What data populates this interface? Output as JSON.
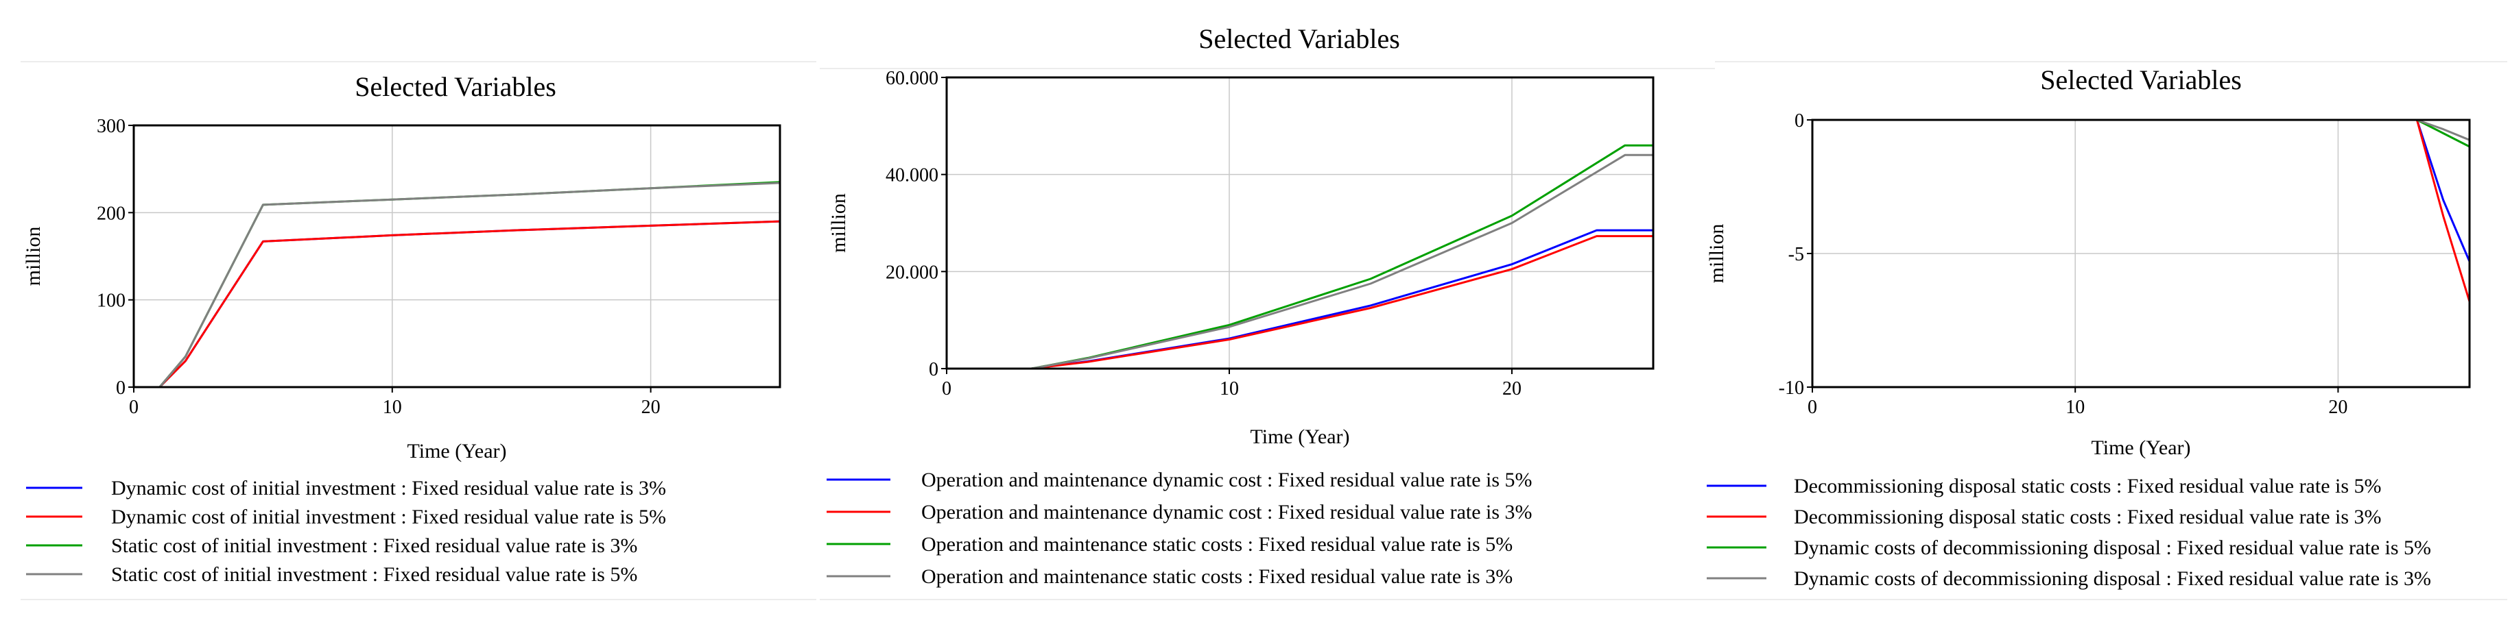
{
  "chart_data": [
    {
      "type": "line",
      "title": "Selected Variables",
      "xlabel": "Time (Year)",
      "ylabel": "million",
      "xlim": [
        0,
        25
      ],
      "ylim": [
        0,
        300
      ],
      "xticks": [
        0,
        10,
        20
      ],
      "yticks": [
        0,
        100,
        200,
        300
      ],
      "ytick_labels": [
        "0",
        "100",
        "200",
        "300"
      ],
      "grid": true,
      "legend_position": "bottom",
      "series": [
        {
          "name": "Dynamic cost of initial investment : Fixed residual value rate is 3%",
          "color": "#0000ff",
          "x": [
            1,
            2,
            5,
            10,
            15,
            20,
            25
          ],
          "y": [
            0,
            30,
            167,
            174,
            180,
            185,
            190
          ]
        },
        {
          "name": "Dynamic cost of initial investment : Fixed residual value rate is 5%",
          "color": "#ff0000",
          "x": [
            1,
            2,
            5,
            10,
            15,
            20,
            25
          ],
          "y": [
            0,
            30,
            167,
            174,
            180,
            185,
            190
          ]
        },
        {
          "name": "Static cost of initial investment : Fixed residual value rate is 3%",
          "color": "#00a000",
          "x": [
            1,
            2,
            5,
            10,
            15,
            20,
            25
          ],
          "y": [
            0,
            35,
            209,
            215,
            221,
            228,
            235
          ]
        },
        {
          "name": "Static cost of initial investment : Fixed residual value rate is 5%",
          "color": "#808080",
          "x": [
            1,
            2,
            5,
            10,
            15,
            20,
            25
          ],
          "y": [
            0,
            35,
            209,
            215,
            221,
            228,
            234
          ]
        }
      ]
    },
    {
      "type": "line",
      "title": "Selected Variables",
      "xlabel": "Time (Year)",
      "ylabel": "million",
      "xlim": [
        0,
        25
      ],
      "ylim": [
        0,
        60
      ],
      "xticks": [
        0,
        10,
        20
      ],
      "yticks": [
        0,
        20,
        40,
        60
      ],
      "ytick_labels": [
        "0",
        "20.000",
        "40.000",
        "60.000"
      ],
      "grid": true,
      "legend_position": "bottom",
      "series": [
        {
          "name": "Operation and maintenance dynamic cost : Fixed residual value rate is 5%",
          "color": "#0000ff",
          "x": [
            3,
            5,
            10,
            15,
            20,
            23,
            25
          ],
          "y": [
            0,
            1.5,
            6.2,
            13,
            21.5,
            28.5,
            28.5
          ]
        },
        {
          "name": "Operation and maintenance dynamic cost : Fixed residual value rate is 3%",
          "color": "#ff0000",
          "x": [
            3,
            5,
            10,
            15,
            20,
            23,
            25
          ],
          "y": [
            0,
            1.4,
            6,
            12.5,
            20.5,
            27.3,
            27.3
          ]
        },
        {
          "name": "Operation and maintenance static costs : Fixed residual value rate is 5%",
          "color": "#00a000",
          "x": [
            3,
            5,
            10,
            15,
            20,
            24,
            25
          ],
          "y": [
            0,
            2.2,
            9,
            18.5,
            31.5,
            46,
            46
          ]
        },
        {
          "name": "Operation and maintenance static costs : Fixed residual value rate is 3%",
          "color": "#808080",
          "x": [
            3,
            5,
            10,
            15,
            20,
            24,
            25
          ],
          "y": [
            0,
            2.1,
            8.6,
            17.5,
            30,
            44,
            44
          ]
        }
      ]
    },
    {
      "type": "line",
      "title": "Selected Variables",
      "xlabel": "Time (Year)",
      "ylabel": "million",
      "xlim": [
        0,
        25
      ],
      "ylim": [
        -10,
        0
      ],
      "xticks": [
        0,
        10,
        20
      ],
      "yticks": [
        -10,
        -5,
        0
      ],
      "ytick_labels": [
        "-10",
        "-5",
        "0"
      ],
      "grid": true,
      "legend_position": "bottom",
      "series": [
        {
          "name": "Decommissioning disposal static costs : Fixed residual value rate is 5%",
          "color": "#0000ff",
          "x": [
            0,
            23,
            24,
            25
          ],
          "y": [
            0,
            0,
            -3.0,
            -5.3
          ]
        },
        {
          "name": "Decommissioning disposal static costs : Fixed residual value rate is 3%",
          "color": "#ff0000",
          "x": [
            0,
            23,
            24,
            25
          ],
          "y": [
            0,
            0,
            -3.6,
            -6.8
          ]
        },
        {
          "name": "Dynamic costs of decommissioning disposal : Fixed residual value rate is 5%",
          "color": "#00a000",
          "x": [
            0,
            23,
            24,
            25
          ],
          "y": [
            0,
            0,
            -0.5,
            -1.0
          ]
        },
        {
          "name": "Dynamic costs of decommissioning disposal : Fixed residual value rate is 3%",
          "color": "#808080",
          "x": [
            0,
            23,
            24,
            25
          ],
          "y": [
            0,
            0,
            -0.35,
            -0.75
          ]
        }
      ]
    }
  ]
}
